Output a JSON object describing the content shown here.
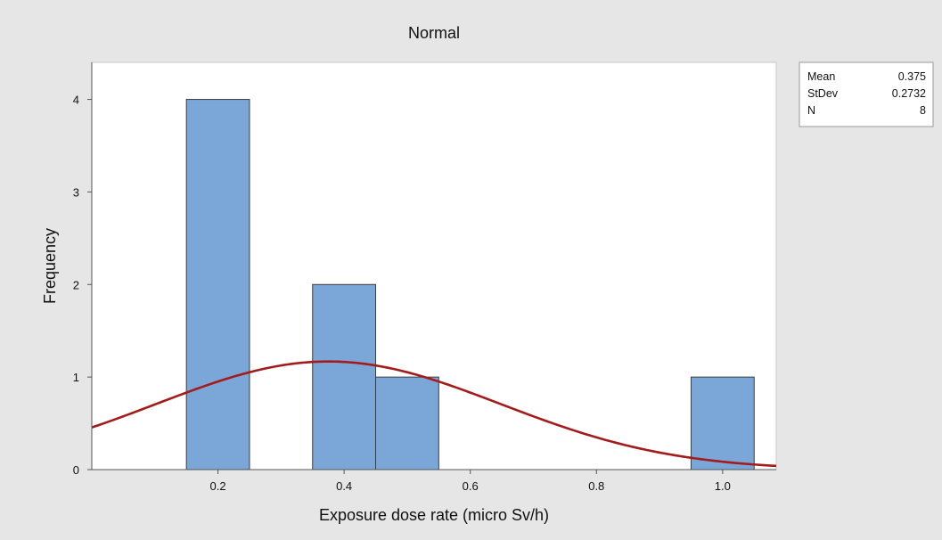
{
  "chart_data": {
    "type": "bar",
    "title": "Normal",
    "xlabel": "Exposure dose rate (micro Sv/h)",
    "ylabel": "Frequency",
    "xlim": [
      0.0,
      1.085
    ],
    "ylim": [
      0,
      4.4
    ],
    "x_ticks": [
      0.2,
      0.4,
      0.6,
      0.8,
      1.0
    ],
    "x_tick_labels": [
      "0.2",
      "0.4",
      "0.6",
      "0.8",
      "1.0"
    ],
    "y_ticks": [
      0,
      1,
      2,
      3,
      4
    ],
    "y_tick_labels": [
      "0",
      "1",
      "2",
      "3",
      "4"
    ],
    "bin_width": 0.1,
    "bins": [
      {
        "center": 0.2,
        "count": 4
      },
      {
        "center": 0.4,
        "count": 2
      },
      {
        "center": 0.5,
        "count": 1
      },
      {
        "center": 1.0,
        "count": 1
      }
    ],
    "fit": {
      "distribution": "Normal",
      "mean": 0.375,
      "stdev": 0.2732,
      "n": 8
    },
    "stats_legend": {
      "placement": "top-right, outside plot area",
      "rows": [
        {
          "label": "Mean",
          "value": "0.375"
        },
        {
          "label": "StDev",
          "value": "0.2732"
        },
        {
          "label": "N",
          "value": "8"
        }
      ]
    },
    "colors": {
      "background": "#e6e6e6",
      "plot_area": "#ffffff",
      "bar_fill": "#7ba6d8",
      "bar_edge": "#3c3c3c",
      "curve": "#a31c1c"
    },
    "grid": false
  }
}
